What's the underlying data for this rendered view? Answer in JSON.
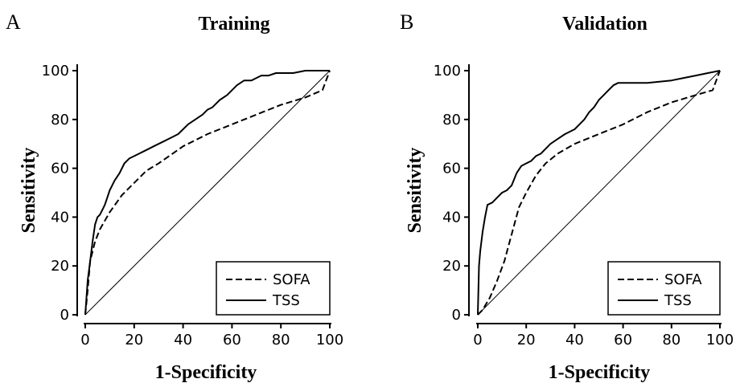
{
  "chart_data": [
    {
      "type": "line",
      "panel_label": "A",
      "title": "Training",
      "xlabel": "1-Specificity",
      "ylabel": "Sensitivity",
      "xlim": [
        0,
        100
      ],
      "ylim": [
        0,
        100
      ],
      "xticks": [
        "0",
        "20",
        "40",
        "60",
        "80",
        "100"
      ],
      "yticks": [
        "0",
        "20",
        "40",
        "60",
        "80",
        "100"
      ],
      "reference_line": [
        [
          0,
          0
        ],
        [
          100,
          100
        ]
      ],
      "legend": {
        "placement": "bottom-right"
      },
      "series": [
        {
          "name": "SOFA",
          "style": "dashed",
          "x": [
            0,
            1,
            2,
            4,
            6,
            10,
            15,
            20,
            25,
            30,
            40,
            50,
            60,
            70,
            80,
            90,
            97,
            100
          ],
          "y": [
            0,
            10,
            22,
            30,
            35,
            42,
            49,
            54,
            59,
            62,
            69,
            74,
            78,
            82,
            86,
            89,
            92,
            100
          ]
        },
        {
          "name": "TSS",
          "style": "solid",
          "x": [
            0,
            1,
            2,
            3,
            4,
            5,
            6,
            7,
            8,
            9,
            10,
            12,
            14,
            16,
            18,
            20,
            22,
            24,
            26,
            28,
            30,
            32,
            34,
            36,
            38,
            40,
            42,
            45,
            48,
            50,
            52,
            55,
            58,
            60,
            62,
            65,
            68,
            70,
            72,
            75,
            78,
            80,
            85,
            90,
            95,
            100
          ],
          "y": [
            0,
            14,
            22,
            30,
            37,
            40,
            41,
            43,
            45,
            48,
            51,
            55,
            58,
            62,
            64,
            65,
            66,
            67,
            68,
            69,
            70,
            71,
            72,
            73,
            74,
            76,
            78,
            80,
            82,
            84,
            85,
            88,
            90,
            92,
            94,
            96,
            96,
            97,
            98,
            98,
            99,
            99,
            99,
            100,
            100,
            100
          ]
        }
      ]
    },
    {
      "type": "line",
      "panel_label": "B",
      "title": "Validation",
      "xlabel": "1-Specificity",
      "ylabel": "Sensitivity",
      "xlim": [
        0,
        100
      ],
      "ylim": [
        0,
        100
      ],
      "xticks": [
        "0",
        "20",
        "40",
        "60",
        "80",
        "100"
      ],
      "yticks": [
        "0",
        "20",
        "40",
        "60",
        "80",
        "100"
      ],
      "reference_line": [
        [
          0,
          0
        ],
        [
          100,
          100
        ]
      ],
      "legend": {
        "placement": "bottom-right"
      },
      "series": [
        {
          "name": "SOFA",
          "style": "dashed",
          "x": [
            0,
            2,
            5,
            8,
            11,
            14,
            17,
            20,
            24,
            28,
            33,
            40,
            50,
            60,
            70,
            80,
            90,
            97,
            100
          ],
          "y": [
            0,
            2,
            7,
            14,
            22,
            33,
            44,
            50,
            57,
            62,
            66,
            70,
            74,
            78,
            83,
            87,
            90,
            92,
            100
          ]
        },
        {
          "name": "TSS",
          "style": "solid",
          "x": [
            0,
            0.5,
            1,
            2,
            3,
            4,
            6,
            8,
            10,
            12,
            14,
            16,
            18,
            20,
            22,
            24,
            26,
            28,
            30,
            33,
            36,
            40,
            42,
            44,
            46,
            48,
            50,
            52,
            54,
            56,
            58,
            60,
            70,
            80,
            85,
            90,
            95,
            100
          ],
          "y": [
            0,
            20,
            26,
            34,
            40,
            45,
            46,
            48,
            50,
            51,
            53,
            58,
            61,
            62,
            63,
            65,
            66,
            68,
            70,
            72,
            74,
            76,
            78,
            80,
            83,
            85,
            88,
            90,
            92,
            94,
            95,
            95,
            95,
            96,
            97,
            98,
            99,
            100
          ]
        }
      ]
    }
  ]
}
